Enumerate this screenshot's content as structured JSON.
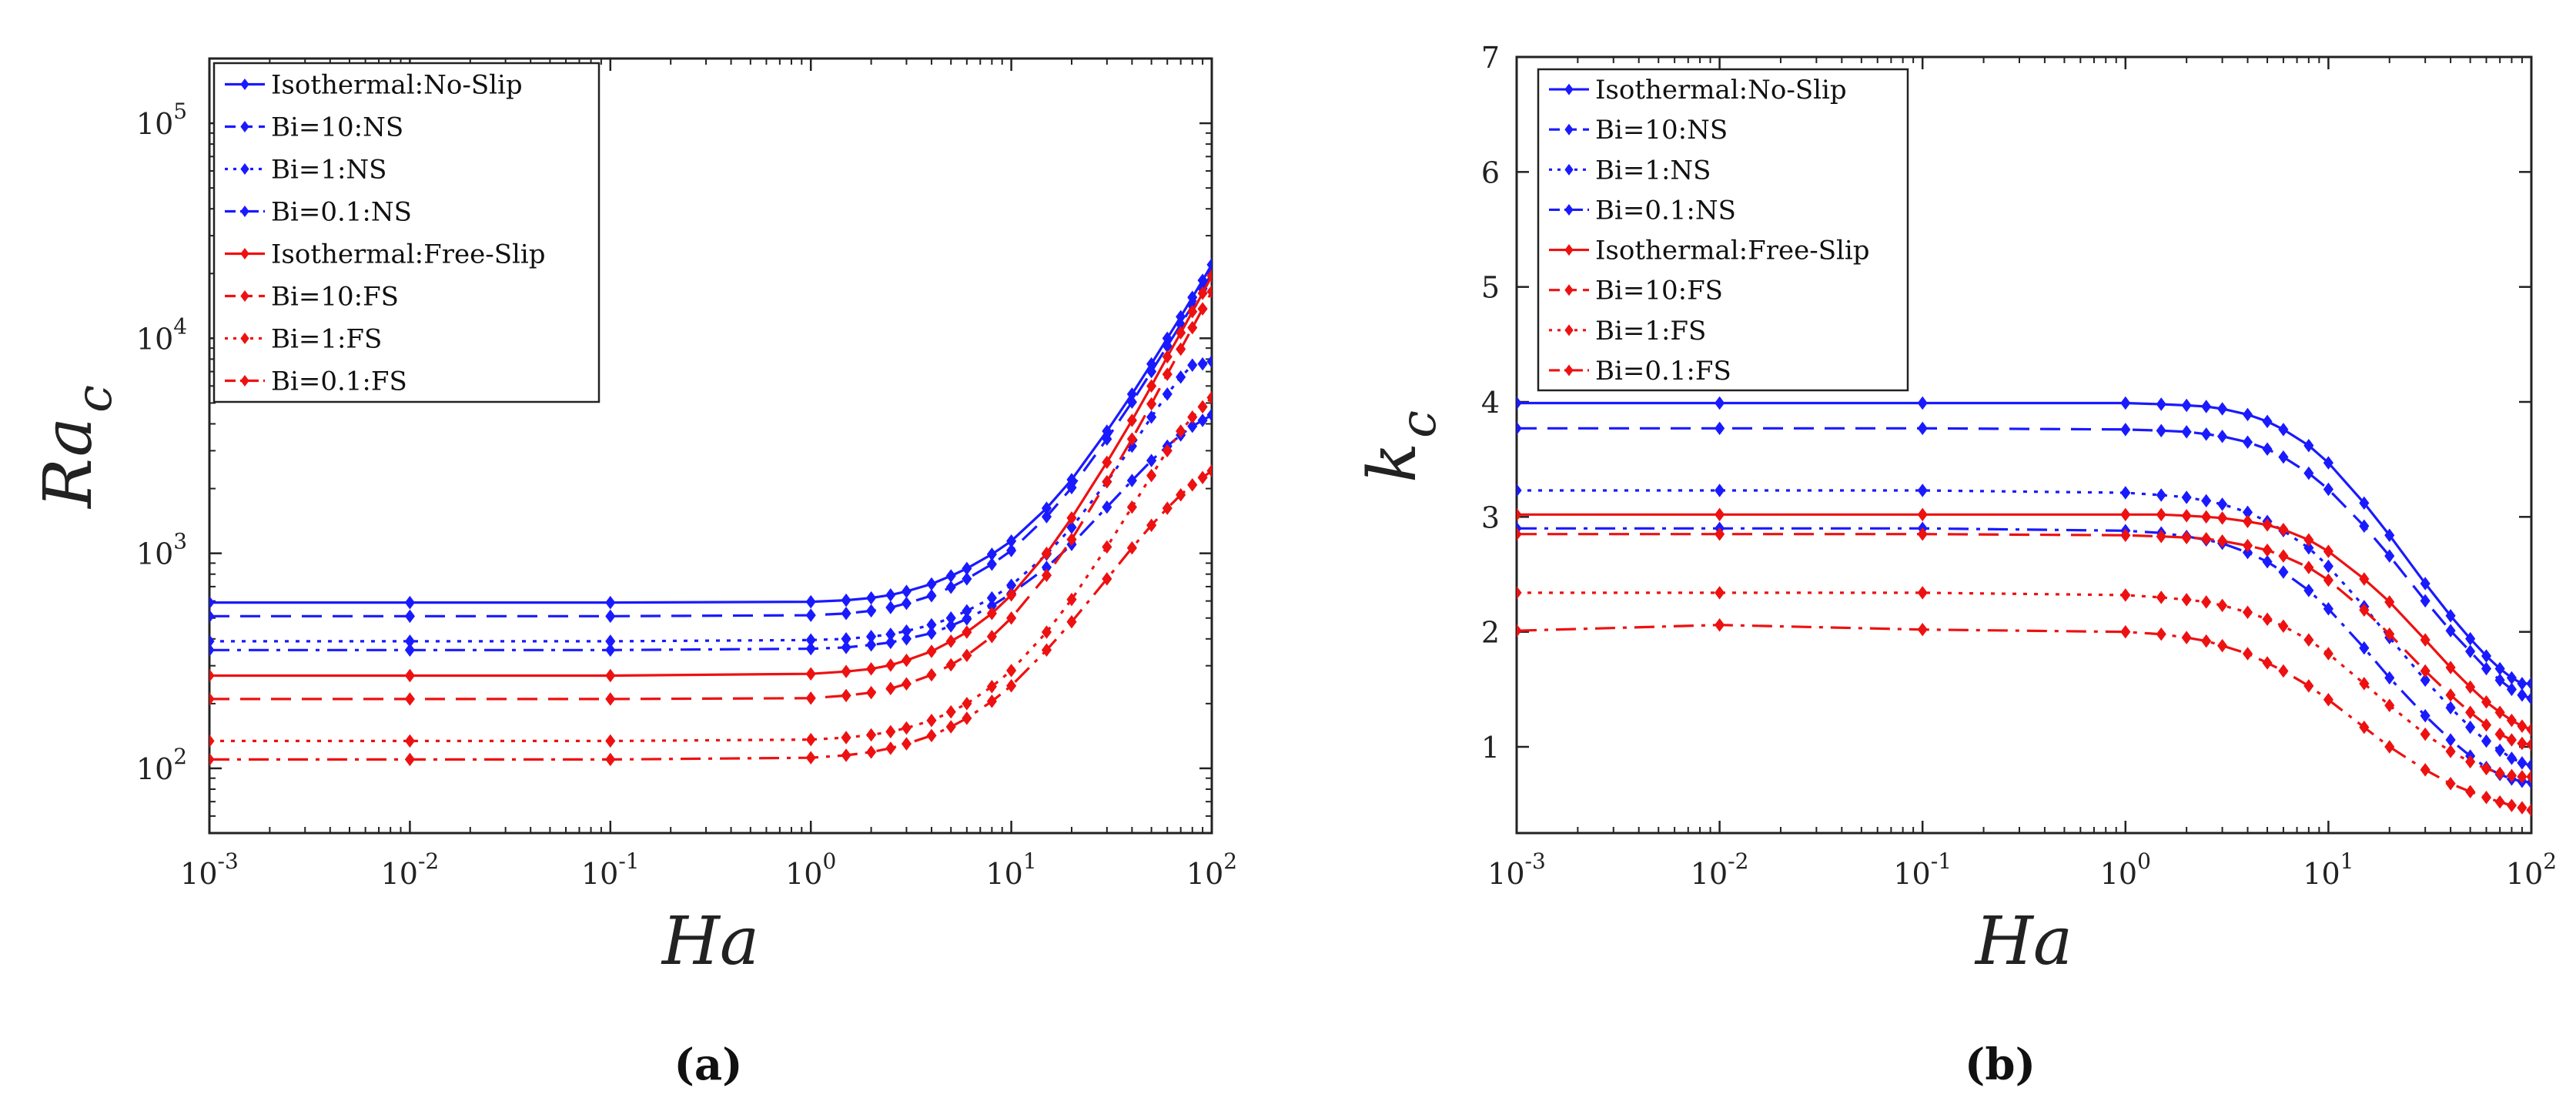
{
  "chart_data": [
    {
      "type": "line",
      "panel": "(a)",
      "xscale": "log",
      "yscale": "log",
      "xlim": [
        0.001,
        100
      ],
      "ylim": [
        50,
        200000
      ],
      "xlabel": "Ha",
      "ylabel_main": "Ra",
      "ylabel_sub": "c",
      "x_ticks": [
        {
          "base": "10",
          "exp": "-3",
          "value": 0.001
        },
        {
          "base": "10",
          "exp": "-2",
          "value": 0.01
        },
        {
          "base": "10",
          "exp": "-1",
          "value": 0.1
        },
        {
          "base": "10",
          "exp": "0",
          "value": 1
        },
        {
          "base": "10",
          "exp": "1",
          "value": 10
        },
        {
          "base": "10",
          "exp": "2",
          "value": 100
        }
      ],
      "y_ticks": [
        {
          "base": "10",
          "exp": "2",
          "value": 100
        },
        {
          "base": "10",
          "exp": "3",
          "value": 1000
        },
        {
          "base": "10",
          "exp": "4",
          "value": 10000
        },
        {
          "base": "10",
          "exp": "5",
          "value": 100000
        }
      ],
      "x": [
        0.001,
        0.01,
        0.1,
        1,
        1.5,
        2,
        2.5,
        3,
        4,
        5,
        6,
        8,
        10,
        15,
        20,
        30,
        40,
        50,
        60,
        70,
        80,
        90,
        100
      ],
      "series": [
        {
          "name": "Isothermal:No-Slip",
          "color": "#1a1aff",
          "dash": "solid",
          "values": [
            590,
            590,
            590,
            595,
            605,
            620,
            640,
            665,
            720,
            785,
            850,
            990,
            1140,
            1620,
            2200,
            3700,
            5500,
            7600,
            10000,
            12600,
            15500,
            18600,
            22000
          ]
        },
        {
          "name": "Bi=10:NS",
          "color": "#1a1aff",
          "dash": "dash",
          "values": [
            510,
            510,
            510,
            515,
            525,
            540,
            560,
            585,
            635,
            695,
            760,
            890,
            1030,
            1480,
            2020,
            3400,
            5050,
            7000,
            9200,
            11600,
            14200,
            17000,
            20000
          ]
        },
        {
          "name": "Bi=1:NS",
          "color": "#1a1aff",
          "dash": "dot",
          "values": [
            390,
            390,
            390,
            395,
            400,
            410,
            420,
            435,
            465,
            500,
            540,
            620,
            710,
            990,
            1320,
            2150,
            3150,
            4300,
            5500,
            6600,
            7500,
            7600,
            7800
          ]
        },
        {
          "name": "Bi=0.1:NS",
          "color": "#1a1aff",
          "dash": "dashdot",
          "values": [
            355,
            355,
            355,
            360,
            365,
            375,
            385,
            400,
            425,
            460,
            495,
            570,
            650,
            860,
            1100,
            1640,
            2180,
            2700,
            3150,
            3550,
            3900,
            4150,
            4400
          ]
        },
        {
          "name": "Isothermal:Free-Slip",
          "color": "#ee1111",
          "dash": "solid",
          "values": [
            270,
            270,
            270,
            275,
            282,
            290,
            302,
            318,
            350,
            390,
            430,
            525,
            640,
            1000,
            1460,
            2650,
            4150,
            6000,
            8200,
            10600,
            13300,
            16200,
            19500
          ]
        },
        {
          "name": "Bi=10:FS",
          "color": "#ee1111",
          "dash": "dash",
          "values": [
            210,
            210,
            210,
            212,
            218,
            225,
            235,
            247,
            272,
            303,
            335,
            410,
            500,
            790,
            1160,
            2150,
            3400,
            4950,
            6800,
            8900,
            11200,
            13700,
            16500
          ]
        },
        {
          "name": "Bi=1:FS",
          "color": "#ee1111",
          "dash": "dot",
          "values": [
            134,
            134,
            134,
            136,
            139,
            143,
            148,
            154,
            167,
            183,
            200,
            240,
            285,
            430,
            610,
            1070,
            1640,
            2300,
            3000,
            3700,
            4300,
            4800,
            5300
          ]
        },
        {
          "name": "Bi=0.1:FS",
          "color": "#ee1111",
          "dash": "dashdot",
          "values": [
            110,
            110,
            110,
            112,
            115,
            119,
            124,
            130,
            142,
            156,
            171,
            205,
            242,
            355,
            480,
            760,
            1060,
            1350,
            1620,
            1870,
            2080,
            2250,
            2420
          ]
        }
      ],
      "legend": "top-left",
      "caption": "(a)"
    },
    {
      "type": "line",
      "panel": "(b)",
      "xscale": "log",
      "yscale": "linear",
      "xlim": [
        0.001,
        100
      ],
      "ylim": [
        0.25,
        7
      ],
      "xlabel": "Ha",
      "ylabel_main": "k",
      "ylabel_sub": "c",
      "x_ticks": [
        {
          "base": "10",
          "exp": "-3",
          "value": 0.001
        },
        {
          "base": "10",
          "exp": "-2",
          "value": 0.01
        },
        {
          "base": "10",
          "exp": "-1",
          "value": 0.1
        },
        {
          "base": "10",
          "exp": "0",
          "value": 1
        },
        {
          "base": "10",
          "exp": "1",
          "value": 10
        },
        {
          "base": "10",
          "exp": "2",
          "value": 100
        }
      ],
      "y_ticks": [
        {
          "label": "1",
          "value": 1
        },
        {
          "label": "2",
          "value": 2
        },
        {
          "label": "3",
          "value": 3
        },
        {
          "label": "4",
          "value": 4
        },
        {
          "label": "5",
          "value": 5
        },
        {
          "label": "6",
          "value": 6
        },
        {
          "label": "7",
          "value": 7
        }
      ],
      "x": [
        0.001,
        0.01,
        0.1,
        1,
        1.5,
        2,
        2.5,
        3,
        4,
        5,
        6,
        8,
        10,
        15,
        20,
        30,
        40,
        50,
        60,
        70,
        80,
        90,
        100
      ],
      "series": [
        {
          "name": "Isothermal:No-Slip",
          "color": "#1a1aff",
          "dash": "solid",
          "values": [
            3.99,
            3.99,
            3.99,
            3.99,
            3.98,
            3.97,
            3.96,
            3.94,
            3.89,
            3.83,
            3.76,
            3.62,
            3.47,
            3.12,
            2.84,
            2.42,
            2.14,
            1.94,
            1.79,
            1.68,
            1.6,
            1.55,
            1.55
          ]
        },
        {
          "name": "Bi=10:NS",
          "color": "#1a1aff",
          "dash": "dash",
          "values": [
            3.77,
            3.77,
            3.77,
            3.76,
            3.75,
            3.74,
            3.72,
            3.7,
            3.65,
            3.59,
            3.52,
            3.38,
            3.24,
            2.92,
            2.66,
            2.27,
            2.01,
            1.83,
            1.68,
            1.58,
            1.5,
            1.45,
            1.42
          ]
        },
        {
          "name": "Bi=1:NS",
          "color": "#1a1aff",
          "dash": "dot",
          "values": [
            3.23,
            3.23,
            3.23,
            3.21,
            3.19,
            3.17,
            3.14,
            3.11,
            3.04,
            2.96,
            2.88,
            2.73,
            2.57,
            2.22,
            1.95,
            1.58,
            1.34,
            1.17,
            1.05,
            0.97,
            0.9,
            0.86,
            0.84
          ]
        },
        {
          "name": "Bi=0.1:NS",
          "color": "#1a1aff",
          "dash": "dashdot",
          "values": [
            2.9,
            2.9,
            2.9,
            2.88,
            2.86,
            2.83,
            2.8,
            2.77,
            2.69,
            2.61,
            2.52,
            2.36,
            2.2,
            1.86,
            1.6,
            1.27,
            1.06,
            0.92,
            0.82,
            0.76,
            0.72,
            0.7,
            0.69
          ]
        },
        {
          "name": "Isothermal:Free-Slip",
          "color": "#ee1111",
          "dash": "solid",
          "values": [
            3.02,
            3.02,
            3.02,
            3.02,
            3.02,
            3.01,
            3.0,
            2.99,
            2.96,
            2.93,
            2.89,
            2.8,
            2.7,
            2.46,
            2.26,
            1.93,
            1.69,
            1.52,
            1.39,
            1.3,
            1.23,
            1.18,
            1.15
          ]
        },
        {
          "name": "Bi=10:FS",
          "color": "#ee1111",
          "dash": "dash",
          "values": [
            2.85,
            2.85,
            2.85,
            2.84,
            2.83,
            2.82,
            2.81,
            2.79,
            2.75,
            2.71,
            2.66,
            2.56,
            2.45,
            2.19,
            1.98,
            1.66,
            1.45,
            1.3,
            1.19,
            1.11,
            1.06,
            1.03,
            1.02
          ]
        },
        {
          "name": "Bi=1:FS",
          "color": "#ee1111",
          "dash": "dot",
          "values": [
            2.34,
            2.34,
            2.34,
            2.32,
            2.3,
            2.28,
            2.26,
            2.23,
            2.17,
            2.11,
            2.05,
            1.93,
            1.81,
            1.55,
            1.36,
            1.11,
            0.96,
            0.87,
            0.81,
            0.77,
            0.75,
            0.74,
            0.74
          ]
        },
        {
          "name": "Bi=0.1:FS",
          "color": "#ee1111",
          "dash": "dashdot",
          "values": [
            2.01,
            2.06,
            2.02,
            2.0,
            1.98,
            1.95,
            1.92,
            1.88,
            1.81,
            1.73,
            1.66,
            1.53,
            1.41,
            1.17,
            1.0,
            0.8,
            0.68,
            0.61,
            0.56,
            0.52,
            0.49,
            0.47,
            0.45
          ]
        }
      ],
      "legend": "top-left",
      "caption": "(b)"
    }
  ]
}
